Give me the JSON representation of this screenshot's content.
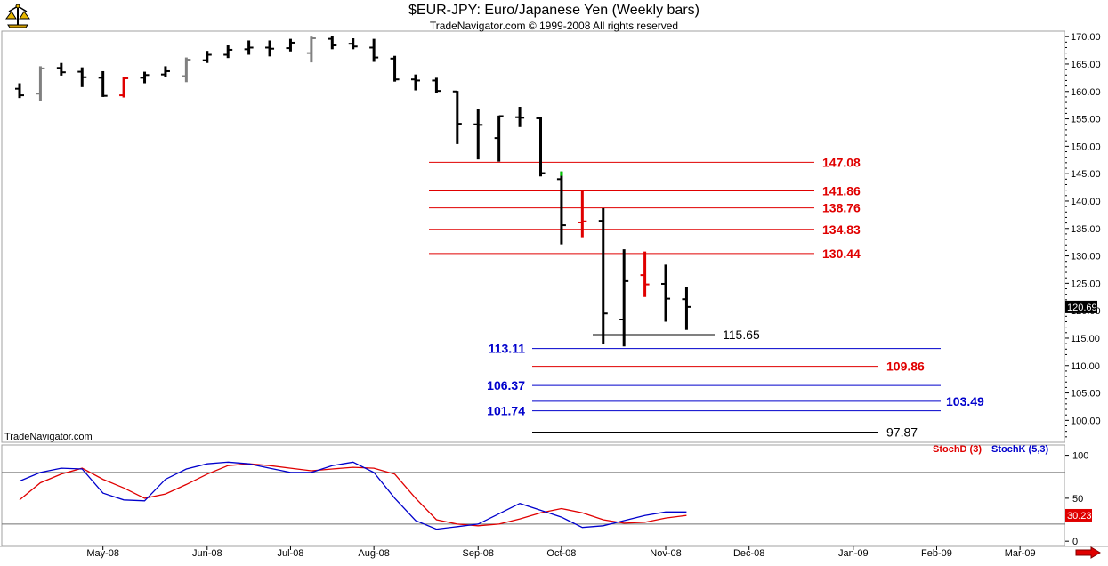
{
  "header": {
    "title": "$EUR-JPY:  Euro/Japanese Yen  (Weekly bars)",
    "subtitle": "TradeNavigator.com © 1999-2008 All rights reserved"
  },
  "brand_label": "TradeNavigator.com",
  "colors": {
    "up_bar": "#000000",
    "down_bar": "#000000",
    "gray_bar": "#808080",
    "red_bar": "#e00000",
    "green_tick": "#00cc00",
    "resistance_line": "#e00000",
    "support_line": "#0000cc",
    "stoch_d": "#e00000",
    "stoch_k": "#0000cc"
  },
  "chart_data": [
    {
      "type": "bar",
      "subtype": "ohlc",
      "title": "$EUR-JPY:  Euro/Japanese Yen  (Weekly bars)",
      "ylim": [
        96,
        171
      ],
      "yticks": [
        "170.00",
        "165.00",
        "160.00",
        "155.00",
        "150.00",
        "145.00",
        "140.00",
        "135.00",
        "130.00",
        "125.00",
        "120.00",
        "115.00",
        "110.00",
        "105.00",
        "100.00"
      ],
      "ytick_values": [
        170,
        165,
        160,
        155,
        150,
        145,
        140,
        135,
        130,
        125,
        120,
        115,
        110,
        105,
        100
      ],
      "x_labels": [
        "May-08",
        "Jun-08",
        "Jul-08",
        "Aug-08",
        "Sep-08",
        "Oct-08",
        "Nov-08",
        "Dec-08",
        "Jan-09",
        "Feb-09",
        "Mar-09"
      ],
      "x_label_weeks": [
        4,
        9,
        13,
        17,
        22,
        26,
        31,
        35,
        40,
        44,
        48
      ],
      "last_price": "120.69",
      "bars": [
        {
          "w": 0,
          "o": 160.5,
          "h": 161.5,
          "l": 158.8,
          "c": 159.3,
          "color": "black"
        },
        {
          "w": 1,
          "o": 159.6,
          "h": 164.6,
          "l": 158.2,
          "c": 164.2,
          "color": "gray"
        },
        {
          "w": 2,
          "o": 164.3,
          "h": 165.2,
          "l": 162.9,
          "c": 163.5,
          "color": "black"
        },
        {
          "w": 3,
          "o": 163.6,
          "h": 164.4,
          "l": 160.8,
          "c": 162.6,
          "color": "black"
        },
        {
          "w": 4,
          "o": 162.5,
          "h": 163.7,
          "l": 159.0,
          "c": 159.2,
          "color": "black"
        },
        {
          "w": 5,
          "o": 159.3,
          "h": 162.7,
          "l": 158.9,
          "c": 162.4,
          "color": "red"
        },
        {
          "w": 6,
          "o": 162.5,
          "h": 163.6,
          "l": 161.5,
          "c": 163.0,
          "color": "black"
        },
        {
          "w": 7,
          "o": 163.1,
          "h": 164.6,
          "l": 162.6,
          "c": 163.7,
          "color": "black"
        },
        {
          "w": 8,
          "o": 162.8,
          "h": 166.2,
          "l": 161.7,
          "c": 165.8,
          "color": "gray"
        },
        {
          "w": 9,
          "o": 165.7,
          "h": 167.4,
          "l": 165.2,
          "c": 166.7,
          "color": "black"
        },
        {
          "w": 10,
          "o": 166.7,
          "h": 168.4,
          "l": 166.1,
          "c": 167.6,
          "color": "black"
        },
        {
          "w": 11,
          "o": 167.7,
          "h": 169.3,
          "l": 166.7,
          "c": 168.0,
          "color": "black"
        },
        {
          "w": 12,
          "o": 168.0,
          "h": 169.3,
          "l": 166.4,
          "c": 167.8,
          "color": "black"
        },
        {
          "w": 13,
          "o": 167.9,
          "h": 169.6,
          "l": 167.3,
          "c": 168.9,
          "color": "black"
        },
        {
          "w": 14,
          "o": 167.0,
          "h": 170.0,
          "l": 165.3,
          "c": 169.7,
          "color": "gray"
        },
        {
          "w": 15,
          "o": 169.6,
          "h": 170.1,
          "l": 167.7,
          "c": 168.4,
          "color": "black"
        },
        {
          "w": 16,
          "o": 168.7,
          "h": 169.7,
          "l": 167.7,
          "c": 168.2,
          "color": "black"
        },
        {
          "w": 17,
          "o": 168.0,
          "h": 169.6,
          "l": 165.4,
          "c": 166.2,
          "color": "black"
        },
        {
          "w": 18,
          "o": 166.0,
          "h": 166.5,
          "l": 161.8,
          "c": 162.2,
          "color": "black"
        },
        {
          "w": 19,
          "o": 162.2,
          "h": 163.1,
          "l": 160.2,
          "c": 162.0,
          "color": "black"
        },
        {
          "w": 20,
          "o": 162.0,
          "h": 162.5,
          "l": 159.8,
          "c": 160.1,
          "color": "black"
        },
        {
          "w": 21,
          "o": 160.0,
          "h": 160.1,
          "l": 150.4,
          "c": 154.1,
          "color": "black"
        },
        {
          "w": 22,
          "o": 154.0,
          "h": 156.8,
          "l": 147.6,
          "c": 153.9,
          "color": "black"
        },
        {
          "w": 23,
          "o": 151.5,
          "h": 155.6,
          "l": 147.2,
          "c": 155.5,
          "color": "black"
        },
        {
          "w": 24,
          "o": 155.3,
          "h": 157.2,
          "l": 153.5,
          "c": 155.2,
          "color": "black"
        },
        {
          "w": 25,
          "o": 155.1,
          "h": 155.3,
          "l": 144.5,
          "c": 145.1,
          "color": "black"
        },
        {
          "w": 26,
          "o": 144.0,
          "h": 145.4,
          "l": 132.1,
          "c": 135.6,
          "color": "black"
        },
        {
          "w": 27,
          "o": 136.1,
          "h": 142.0,
          "l": 133.4,
          "c": 136.3,
          "color": "red"
        },
        {
          "w": 28,
          "o": 136.4,
          "h": 138.7,
          "l": 113.9,
          "c": 119.5,
          "color": "black"
        },
        {
          "w": 29,
          "o": 118.4,
          "h": 131.2,
          "l": 113.5,
          "c": 125.4,
          "color": "black"
        },
        {
          "w": 30,
          "o": 126.5,
          "h": 130.8,
          "l": 122.5,
          "c": 124.8,
          "color": "red"
        },
        {
          "w": 31,
          "o": 124.9,
          "h": 128.4,
          "l": 118.0,
          "c": 122.2,
          "color": "black"
        },
        {
          "w": 32,
          "o": 122.1,
          "h": 124.3,
          "l": 116.5,
          "c": 120.7,
          "color": "black"
        }
      ],
      "level_labels": [
        {
          "value": 147.08,
          "label": "147.08",
          "color": "red"
        },
        {
          "value": 141.86,
          "label": "141.86",
          "color": "red"
        },
        {
          "value": 138.76,
          "label": "138.76",
          "color": "red"
        },
        {
          "value": 134.83,
          "label": "134.83",
          "color": "red"
        },
        {
          "value": 130.44,
          "label": "130.44",
          "color": "red"
        },
        {
          "value": 115.65,
          "label": "115.65",
          "color": "black"
        },
        {
          "value": 113.11,
          "label": "113.11",
          "color": "blue"
        },
        {
          "value": 109.86,
          "label": "109.86",
          "color": "red"
        },
        {
          "value": 106.37,
          "label": "106.37",
          "color": "blue"
        },
        {
          "value": 103.49,
          "label": "103.49",
          "color": "blue"
        },
        {
          "value": 101.74,
          "label": "101.74",
          "color": "blue"
        },
        {
          "value": 97.87,
          "label": "97.87",
          "color": "black"
        }
      ]
    },
    {
      "type": "line",
      "ylim": [
        -5,
        112
      ],
      "yticks": [
        "100",
        "50",
        "0"
      ],
      "ytick_values": [
        100,
        50,
        0
      ],
      "reference_levels": [
        80,
        20
      ],
      "last_value": "30.23",
      "series": [
        {
          "name": "StochD (3)",
          "color": "red",
          "points": [
            [
              0,
              48
            ],
            [
              1,
              68
            ],
            [
              2,
              78
            ],
            [
              3,
              85
            ],
            [
              4,
              72
            ],
            [
              5,
              62
            ],
            [
              6,
              50
            ],
            [
              7,
              55
            ],
            [
              8,
              66
            ],
            [
              9,
              78
            ],
            [
              10,
              88
            ],
            [
              11,
              90
            ],
            [
              12,
              88
            ],
            [
              13,
              85
            ],
            [
              14,
              82
            ],
            [
              15,
              84
            ],
            [
              16,
              86
            ],
            [
              17,
              85
            ],
            [
              18,
              78
            ],
            [
              19,
              50
            ],
            [
              20,
              25
            ],
            [
              21,
              20
            ],
            [
              22,
              18
            ],
            [
              23,
              20
            ],
            [
              24,
              26
            ],
            [
              25,
              33
            ],
            [
              26,
              38
            ],
            [
              27,
              33
            ],
            [
              28,
              25
            ],
            [
              29,
              21
            ],
            [
              30,
              22
            ],
            [
              31,
              27
            ],
            [
              32,
              30
            ]
          ]
        },
        {
          "name": "StochK (5,3)",
          "color": "blue",
          "points": [
            [
              0,
              70
            ],
            [
              1,
              80
            ],
            [
              2,
              85
            ],
            [
              3,
              84
            ],
            [
              4,
              56
            ],
            [
              5,
              48
            ],
            [
              6,
              47
            ],
            [
              7,
              72
            ],
            [
              8,
              84
            ],
            [
              9,
              90
            ],
            [
              10,
              92
            ],
            [
              11,
              90
            ],
            [
              12,
              85
            ],
            [
              13,
              80
            ],
            [
              14,
              80
            ],
            [
              15,
              88
            ],
            [
              16,
              92
            ],
            [
              17,
              80
            ],
            [
              18,
              50
            ],
            [
              19,
              24
            ],
            [
              20,
              14
            ],
            [
              21,
              17
            ],
            [
              22,
              20
            ],
            [
              23,
              32
            ],
            [
              24,
              44
            ],
            [
              25,
              36
            ],
            [
              26,
              28
            ],
            [
              27,
              16
            ],
            [
              28,
              18
            ],
            [
              29,
              24
            ],
            [
              30,
              30
            ],
            [
              31,
              34
            ],
            [
              32,
              34
            ]
          ]
        }
      ]
    }
  ]
}
